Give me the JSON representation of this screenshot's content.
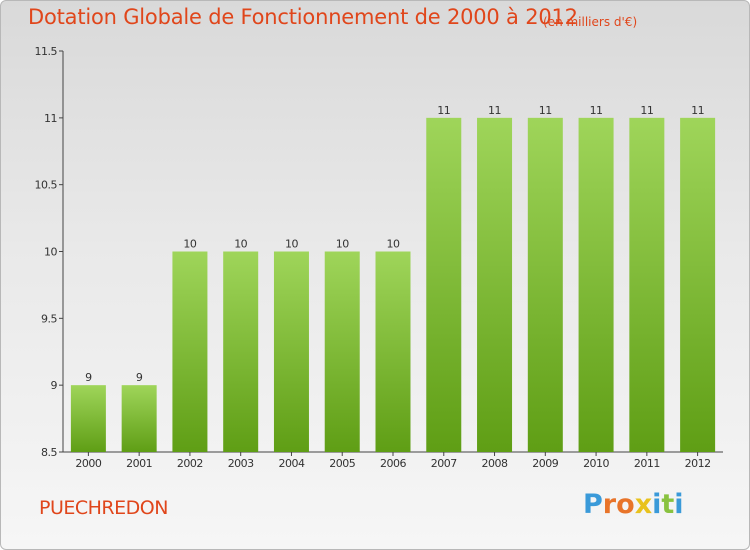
{
  "title": "Dotation Globale de Fonctionnement de 2000 à 2012",
  "subtitle": "(en milliers d'€)",
  "commune": "PUECHREDON",
  "brand": {
    "letters": [
      "P",
      "r",
      "o",
      "x",
      "i",
      "t",
      "i"
    ],
    "colors": [
      "#3a9ad9",
      "#e8742a",
      "#e8742a",
      "#e8c21d",
      "#3a9ad9",
      "#89c23f",
      "#3a9ad9"
    ]
  },
  "colors": {
    "bar_top": "#9fd55a",
    "bar_bottom": "#5f9e15",
    "title": "#e0461b"
  },
  "chart_data": {
    "type": "bar",
    "categories": [
      "2000",
      "2001",
      "2002",
      "2003",
      "2004",
      "2005",
      "2006",
      "2007",
      "2008",
      "2009",
      "2010",
      "2011",
      "2012"
    ],
    "values": [
      9,
      9,
      10,
      10,
      10,
      10,
      10,
      11,
      11,
      11,
      11,
      11,
      11
    ],
    "data_labels": [
      "9",
      "9",
      "10",
      "10",
      "10",
      "10",
      "10",
      "11",
      "11",
      "11",
      "11",
      "11",
      "11"
    ],
    "ylim": [
      8.5,
      11.5
    ],
    "yticks": [
      8.5,
      9,
      9.5,
      10,
      10.5,
      11,
      11.5
    ],
    "ytick_labels": [
      "8.5",
      "9",
      "9.5",
      "10",
      "10.5",
      "11",
      "11.5"
    ],
    "grid": false,
    "xlabel": "",
    "ylabel": ""
  }
}
